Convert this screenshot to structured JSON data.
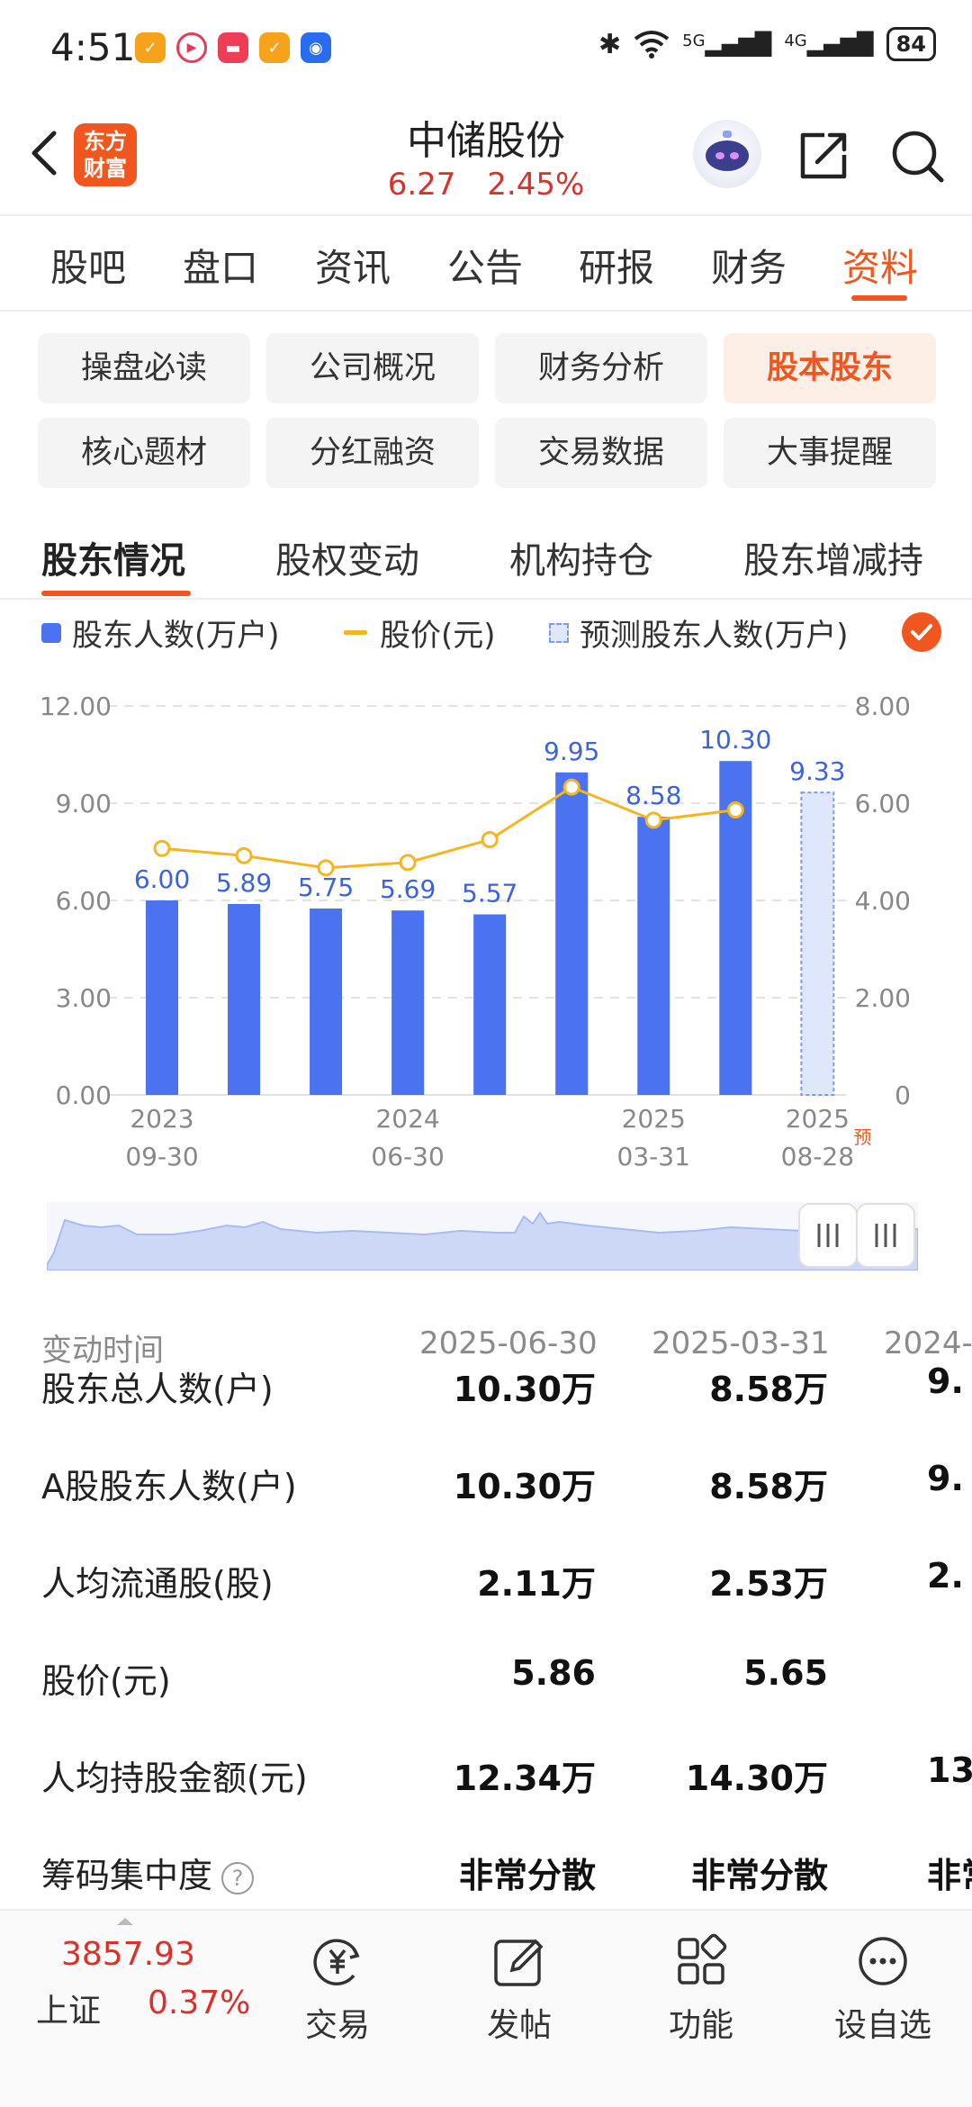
{
  "status_bar": {
    "time": "4:51",
    "signal_5g": "5G",
    "signal_4g": "4G",
    "battery": "84"
  },
  "header": {
    "logo_text_line1": "东方",
    "logo_text_line2": "财富",
    "stock_name": "中储股份",
    "price": "6.27",
    "change_pct": "2.45%"
  },
  "main_tabs": [
    {
      "label": "股吧"
    },
    {
      "label": "盘口"
    },
    {
      "label": "资讯"
    },
    {
      "label": "公告"
    },
    {
      "label": "研报"
    },
    {
      "label": "财务"
    },
    {
      "label": "资料",
      "active": true
    }
  ],
  "sub_buttons": [
    {
      "label": "操盘必读"
    },
    {
      "label": "公司概况"
    },
    {
      "label": "财务分析"
    },
    {
      "label": "股本股东",
      "active": true
    },
    {
      "label": "核心题材"
    },
    {
      "label": "分红融资"
    },
    {
      "label": "交易数据"
    },
    {
      "label": "大事提醒"
    }
  ],
  "section_tabs": [
    {
      "label": "股东情况",
      "active": true
    },
    {
      "label": "股权变动"
    },
    {
      "label": "机构持仓"
    },
    {
      "label": "股东增减持"
    }
  ],
  "legend": {
    "holders": "股东人数(万户)",
    "price": "股价(元)",
    "forecast": "预测股东人数(万户)"
  },
  "colors": {
    "accent": "#f0561d",
    "bar": "#4b72f0",
    "line": "#f4b620",
    "up_red": "#d9312b"
  },
  "chart_data": {
    "type": "bar",
    "left_axis_ticks": [
      "12.00",
      "9.00",
      "6.00",
      "3.00",
      "0.00"
    ],
    "right_axis_ticks": [
      "8.00",
      "6.00",
      "4.00",
      "2.00",
      "0"
    ],
    "left_ylim": [
      0,
      12
    ],
    "right_ylim": [
      0,
      8
    ],
    "x_ticks": [
      {
        "year": "2023",
        "date": "09-30",
        "index": 0
      },
      {
        "year": "2024",
        "date": "06-30",
        "index": 3
      },
      {
        "year": "2025",
        "date": "03-31",
        "index": 6
      },
      {
        "year": "2025",
        "date": "08-28",
        "index": 8,
        "forecast_tag": "预"
      }
    ],
    "series": [
      {
        "name": "股东人数(万户)",
        "values": [
          6.0,
          5.89,
          5.75,
          5.69,
          5.57,
          9.95,
          8.58,
          10.3
        ],
        "labels": [
          "6.00",
          "5.89",
          "5.75",
          "5.69",
          "5.57",
          "9.95",
          "8.58",
          "10.30"
        ]
      },
      {
        "name": "股价(元)",
        "values": [
          5.07,
          4.92,
          4.67,
          4.78,
          5.25,
          6.33,
          5.65,
          5.86
        ]
      },
      {
        "name": "预测股东人数(万户)",
        "values": [
          null,
          null,
          null,
          null,
          null,
          null,
          null,
          null,
          9.33
        ],
        "labels": [
          "9.33"
        ]
      }
    ],
    "grid": true
  },
  "table": {
    "header_label": "变动时间",
    "columns": [
      "2025-06-30",
      "2025-03-31",
      "2024-"
    ],
    "rows": [
      {
        "label": "股东总人数(户)",
        "values": [
          "10.30万",
          "8.58万",
          "9."
        ]
      },
      {
        "label": "A股股东人数(户)",
        "values": [
          "10.30万",
          "8.58万",
          "9."
        ]
      },
      {
        "label": "人均流通股(股)",
        "values": [
          "2.11万",
          "2.53万",
          "2."
        ]
      },
      {
        "label": "股价(元)",
        "values": [
          "5.86",
          "5.65",
          ""
        ]
      },
      {
        "label": "人均持股金额(元)",
        "values": [
          "12.34万",
          "14.30万",
          "13."
        ]
      },
      {
        "label": "筹码集中度",
        "help": "?",
        "values": [
          "非常分散",
          "非常分散",
          "非常"
        ]
      }
    ]
  },
  "bottom_bar": {
    "index_value": "3857.93",
    "index_name": "上证",
    "index_pct": "0.37%",
    "nav": [
      {
        "label": "交易",
        "icon": "yuan-cycle-icon"
      },
      {
        "label": "发帖",
        "icon": "edit-icon"
      },
      {
        "label": "功能",
        "icon": "grid-icon"
      },
      {
        "label": "设自选",
        "icon": "more-icon"
      }
    ]
  }
}
